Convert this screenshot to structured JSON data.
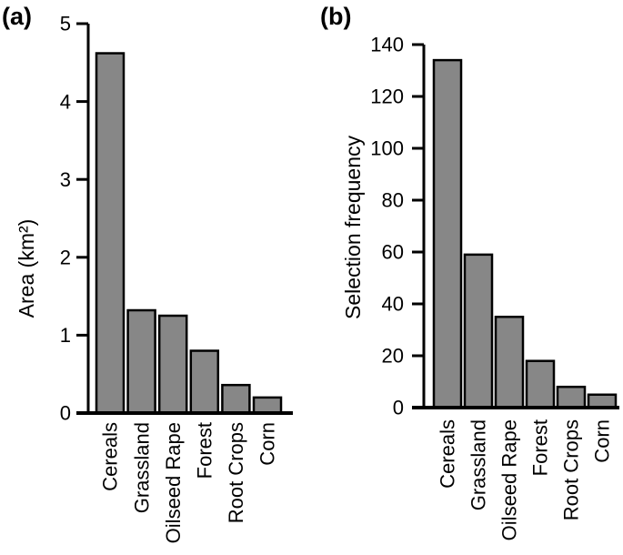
{
  "figure": {
    "background": "#ffffff",
    "bar_fill": "#878787",
    "bar_stroke": "#000000",
    "axis_color": "#000000",
    "text_color": "#000000"
  },
  "chart_data": [
    {
      "type": "bar",
      "panel_label": "(a)",
      "title": "",
      "xlabel": "",
      "ylabel": "Area (km²)",
      "categories": [
        "Cereals",
        "Grassland",
        "Oilseed Rape",
        "Forest",
        "Root Crops",
        "Corn"
      ],
      "values": [
        4.62,
        1.32,
        1.25,
        0.8,
        0.36,
        0.2
      ],
      "ylim": [
        0,
        5
      ],
      "yticks": [
        0,
        1,
        2,
        3,
        4,
        5
      ],
      "grid": false,
      "legend": false,
      "category_label_rotation": -90
    },
    {
      "type": "bar",
      "panel_label": "(b)",
      "title": "",
      "xlabel": "",
      "ylabel": "Selection frequency",
      "categories": [
        "Cereals",
        "Grassland",
        "Oilseed Rape",
        "Forest",
        "Root Crops",
        "Corn"
      ],
      "values": [
        134,
        59,
        35,
        18,
        8,
        5
      ],
      "ylim": [
        0,
        140
      ],
      "yticks": [
        0,
        20,
        40,
        60,
        80,
        100,
        120,
        140
      ],
      "grid": false,
      "legend": false,
      "category_label_rotation": -90
    }
  ]
}
